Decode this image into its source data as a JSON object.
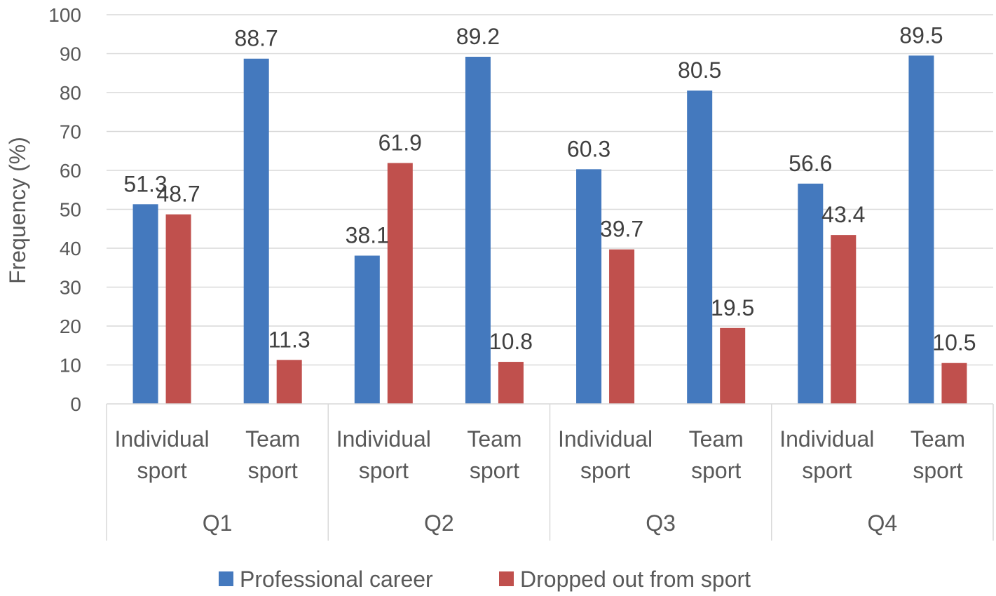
{
  "chart_data": {
    "type": "bar",
    "title": "",
    "ylabel": "Frequency (%)",
    "ylim": [
      0,
      100
    ],
    "yticks": [
      "0",
      "10",
      "20",
      "30",
      "40",
      "50",
      "60",
      "70",
      "80",
      "90",
      "100"
    ],
    "grid": true,
    "legend_position": "bottom",
    "groups": [
      {
        "label": "Q1",
        "categories": [
          {
            "line1": "Individual",
            "line2": "sport"
          },
          {
            "line1": "Team",
            "line2": "sport"
          }
        ]
      },
      {
        "label": "Q2",
        "categories": [
          {
            "line1": "Individual",
            "line2": "sport"
          },
          {
            "line1": "Team",
            "line2": "sport"
          }
        ]
      },
      {
        "label": "Q3",
        "categories": [
          {
            "line1": "Individual",
            "line2": "sport"
          },
          {
            "line1": "Team",
            "line2": "sport"
          }
        ]
      },
      {
        "label": "Q4",
        "categories": [
          {
            "line1": "Individual",
            "line2": "sport"
          },
          {
            "line1": "Team",
            "line2": "sport"
          }
        ]
      }
    ],
    "series": [
      {
        "name": "Professional career",
        "color": "#4479BE",
        "values": [
          51.3,
          88.7,
          38.1,
          89.2,
          60.3,
          80.5,
          56.6,
          89.5
        ]
      },
      {
        "name": "Dropped out from sport",
        "color": "#C0504D",
        "values": [
          48.7,
          11.3,
          61.9,
          10.8,
          39.7,
          19.5,
          43.4,
          10.5
        ]
      }
    ]
  }
}
